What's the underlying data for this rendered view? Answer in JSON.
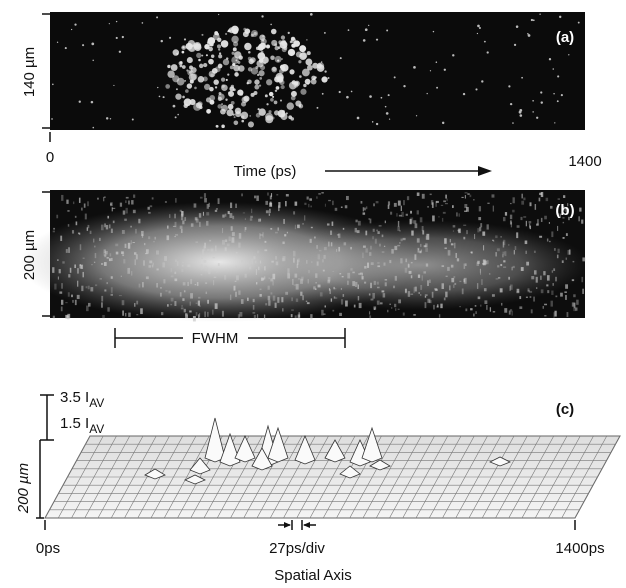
{
  "panel_a": {
    "label": "(a)",
    "axis_label": "140 µm",
    "x_start": "0",
    "x_title": "Time (ps)",
    "x_end": "1400"
  },
  "panel_b": {
    "label": "(b)",
    "axis_label": "200 µm",
    "width_label": "FWHM"
  },
  "panel_c": {
    "label": "(c)",
    "scale_top": {
      "main": "3.5 I",
      "sub": "AV"
    },
    "scale_bottom": {
      "main": "1.5 I",
      "sub": "AV"
    },
    "axis_label": "200 µm",
    "x_start": "0ps",
    "x_division": "27ps/div",
    "x_end": "1400ps",
    "x_title": "Spatial Axis"
  }
}
